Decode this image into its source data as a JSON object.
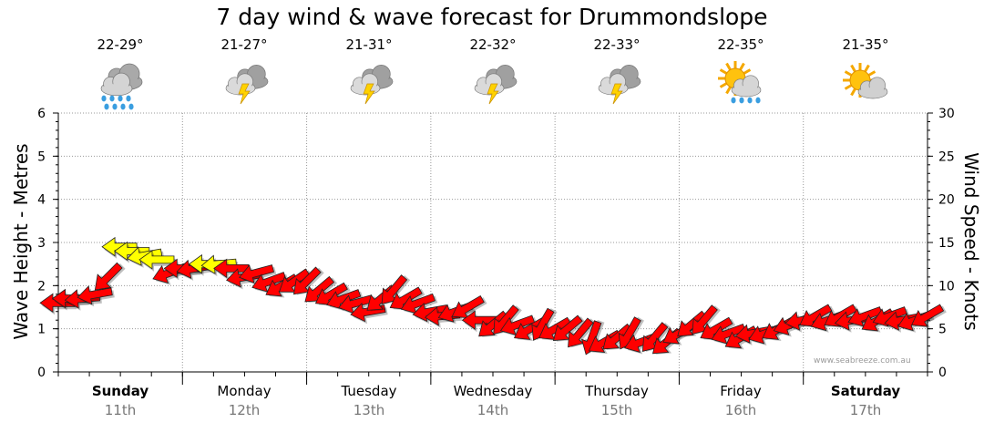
{
  "title": "7 day wind & wave forecast for Drummondslope",
  "days": [
    {
      "name": "Sunday",
      "date": "11th",
      "temp": "22-29°",
      "icon": "rain-cloud-icon",
      "bold": true
    },
    {
      "name": "Monday",
      "date": "12th",
      "temp": "21-27°",
      "icon": "thunderstorm-icon",
      "bold": false
    },
    {
      "name": "Tuesday",
      "date": "13th",
      "temp": "21-31°",
      "icon": "thunderstorm-icon",
      "bold": false
    },
    {
      "name": "Wednesday",
      "date": "14th",
      "temp": "22-32°",
      "icon": "thunderstorm-icon",
      "bold": false
    },
    {
      "name": "Thursday",
      "date": "15th",
      "temp": "22-33°",
      "icon": "thunderstorm-icon",
      "bold": false
    },
    {
      "name": "Friday",
      "date": "16th",
      "temp": "22-35°",
      "icon": "sun-showers-icon",
      "bold": false
    },
    {
      "name": "Saturday",
      "date": "17th",
      "temp": "21-35°",
      "icon": "partly-cloudy-icon",
      "bold": true
    }
  ],
  "credit": "www.seabreeze.com.au",
  "colors": {
    "wind_strong": "#ffff00",
    "wind_normal": "#ff0000",
    "grid": "#999999"
  },
  "chart_data": {
    "type": "line",
    "ylabel": "Wave Height - Metres",
    "y2label": "Wind Speed - Knots",
    "ylim": [
      0,
      6
    ],
    "y2lim": [
      0,
      30
    ],
    "yticks": [
      "0",
      "1",
      "2",
      "3",
      "4",
      "5",
      "6"
    ],
    "y2ticks": [
      "0",
      "5",
      "10",
      "15",
      "20",
      "25",
      "30"
    ],
    "grid": true,
    "series": [
      {
        "unit": "knots",
        "marker": "wind-arrow",
        "x_days": [
          0.0,
          0.1,
          0.2,
          0.3,
          0.4,
          0.5,
          0.6,
          0.7,
          0.8,
          0.9,
          1.0,
          1.1,
          1.2,
          1.3,
          1.4,
          1.5,
          1.6,
          1.7,
          1.8,
          1.9,
          2.0,
          2.1,
          2.2,
          2.3,
          2.4,
          2.5,
          2.6,
          2.7,
          2.8,
          2.9,
          3.0,
          3.1,
          3.2,
          3.3,
          3.4,
          3.5,
          3.6,
          3.7,
          3.8,
          3.9,
          4.0,
          4.1,
          4.2,
          4.3,
          4.4,
          4.5,
          4.6,
          4.7,
          4.8,
          4.9,
          5.0,
          5.1,
          5.2,
          5.3,
          5.4,
          5.5,
          5.6,
          5.7,
          5.8,
          5.9,
          6.0,
          6.1,
          6.2,
          6.3,
          6.4,
          6.5,
          6.6,
          6.7,
          6.8,
          6.9,
          7.0
        ],
        "knots": [
          8,
          8.5,
          8.5,
          9,
          11,
          14.5,
          14,
          13.5,
          13,
          11.5,
          12,
          12,
          12.5,
          12.5,
          12,
          11,
          11.5,
          10.5,
          10,
          10.5,
          10.5,
          9.5,
          9,
          8.5,
          8,
          7,
          8.5,
          9.5,
          8.5,
          8,
          7,
          6.5,
          7,
          7.5,
          6,
          5.5,
          6,
          5.5,
          5,
          5.5,
          5,
          5,
          4.5,
          4,
          3.5,
          4,
          4.5,
          3.5,
          4,
          3.5,
          4.5,
          5.5,
          6,
          5,
          4.5,
          4,
          4.5,
          4.5,
          5,
          5.5,
          6,
          6.5,
          6,
          6.5,
          6,
          6.5,
          6,
          6.5,
          6,
          6,
          6.5
        ],
        "direction_deg": [
          270,
          270,
          265,
          260,
          225,
          270,
          270,
          260,
          270,
          250,
          270,
          260,
          270,
          265,
          270,
          260,
          255,
          250,
          240,
          235,
          225,
          230,
          240,
          250,
          255,
          260,
          230,
          220,
          240,
          250,
          260,
          265,
          250,
          240,
          270,
          230,
          220,
          250,
          240,
          210,
          240,
          230,
          220,
          200,
          240,
          230,
          210,
          250,
          220,
          230,
          240,
          230,
          220,
          240,
          250,
          240,
          260,
          250,
          240,
          250,
          260,
          240,
          250,
          240,
          260,
          250,
          240,
          250,
          260,
          250,
          240
        ]
      }
    ]
  }
}
